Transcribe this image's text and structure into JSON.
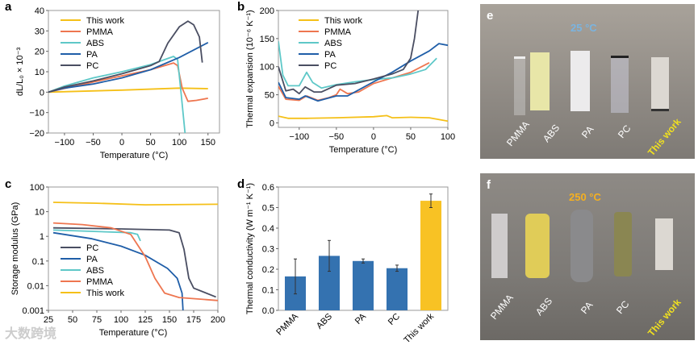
{
  "colors": {
    "this_work": "#f5c018",
    "PMMA": "#ee7650",
    "ABS": "#5ec8c8",
    "PA": "#1f5ea8",
    "PC": "#4a4e62",
    "bar_blue": "#3472b0",
    "bar_yellow": "#f8c224"
  },
  "chart_data": [
    {
      "panel": "a",
      "type": "line",
      "xlabel": "Temperature (°C)",
      "ylabel": "dL/L₀ × 10⁻³",
      "xlim": [
        -128,
        170
      ],
      "ylim": [
        -20,
        40
      ],
      "xticks": [
        -100,
        -50,
        0,
        50,
        100,
        150
      ],
      "yticks": [
        -20,
        -10,
        0,
        10,
        20,
        30,
        40
      ],
      "legend": "top-left",
      "series": [
        {
          "name": "This work",
          "key": "this_work",
          "points": [
            [
              -128,
              0
            ],
            [
              0,
              1
            ],
            [
              100,
              2
            ],
            [
              150,
              1.7
            ]
          ]
        },
        {
          "name": "PMMA",
          "key": "PMMA",
          "points": [
            [
              -128,
              0
            ],
            [
              -50,
              5
            ],
            [
              0,
              8
            ],
            [
              50,
              11
            ],
            [
              90,
              14.3
            ],
            [
              97,
              13
            ],
            [
              105,
              2
            ],
            [
              115,
              -4.5
            ],
            [
              130,
              -4
            ],
            [
              150,
              -3
            ]
          ]
        },
        {
          "name": "ABS",
          "key": "ABS",
          "points": [
            [
              -128,
              0
            ],
            [
              -100,
              3
            ],
            [
              -50,
              7
            ],
            [
              0,
              10
            ],
            [
              50,
              13.5
            ],
            [
              90,
              17.5
            ],
            [
              97,
              16
            ],
            [
              103,
              0
            ],
            [
              110,
              -20
            ]
          ]
        },
        {
          "name": "PA",
          "key": "PA",
          "points": [
            [
              -128,
              0
            ],
            [
              -100,
              2
            ],
            [
              -50,
              4
            ],
            [
              0,
              7
            ],
            [
              50,
              11
            ],
            [
              100,
              17
            ],
            [
              150,
              24.3
            ]
          ]
        },
        {
          "name": "PC",
          "key": "PC",
          "points": [
            [
              -128,
              0
            ],
            [
              -100,
              2.5
            ],
            [
              -50,
              5.5
            ],
            [
              0,
              9
            ],
            [
              50,
              13
            ],
            [
              65,
              15
            ],
            [
              80,
              24
            ],
            [
              100,
              32
            ],
            [
              115,
              34.8
            ],
            [
              125,
              33
            ],
            [
              135,
              27
            ],
            [
              140,
              14.5
            ]
          ]
        }
      ]
    },
    {
      "panel": "b",
      "type": "line",
      "xlabel": "Temperature (°C)",
      "ylabel": "Thermal expansion (10⁻⁶ K⁻¹)",
      "xlim": [
        -128,
        100
      ],
      "ylim": [
        -8,
        200
      ],
      "xticks": [
        -100,
        -50,
        0,
        50,
        100
      ],
      "yticks": [
        0,
        50,
        100,
        150,
        200
      ],
      "legend": "top-left",
      "series": [
        {
          "name": "This work",
          "key": "this_work",
          "points": [
            [
              -128,
              12
            ],
            [
              -115,
              8
            ],
            [
              -90,
              8
            ],
            [
              -50,
              9
            ],
            [
              0,
              11
            ],
            [
              18,
              13
            ],
            [
              25,
              9
            ],
            [
              50,
              10
            ],
            [
              75,
              9
            ],
            [
              100,
              3
            ]
          ]
        },
        {
          "name": "PMMA",
          "key": "PMMA",
          "points": [
            [
              -128,
              65
            ],
            [
              -118,
              42
            ],
            [
              -100,
              40
            ],
            [
              -90,
              48
            ],
            [
              -75,
              40
            ],
            [
              -60,
              45
            ],
            [
              -50,
              50
            ],
            [
              -45,
              60
            ],
            [
              -35,
              52
            ],
            [
              -20,
              55
            ],
            [
              0,
              70
            ],
            [
              25,
              80
            ],
            [
              50,
              90
            ],
            [
              75,
              107
            ]
          ]
        },
        {
          "name": "ABS",
          "key": "ABS",
          "points": [
            [
              -128,
              145
            ],
            [
              -122,
              85
            ],
            [
              -115,
              66
            ],
            [
              -100,
              66
            ],
            [
              -90,
              90
            ],
            [
              -82,
              72
            ],
            [
              -70,
              62
            ],
            [
              -50,
              68
            ],
            [
              -25,
              73
            ],
            [
              0,
              77
            ],
            [
              25,
              80
            ],
            [
              50,
              87
            ],
            [
              70,
              95
            ],
            [
              85,
              115
            ]
          ]
        },
        {
          "name": "PA",
          "key": "PA",
          "points": [
            [
              -128,
              72
            ],
            [
              -118,
              45
            ],
            [
              -100,
              42
            ],
            [
              -92,
              48
            ],
            [
              -75,
              39
            ],
            [
              -50,
              48
            ],
            [
              -35,
              48
            ],
            [
              -25,
              55
            ],
            [
              0,
              73
            ],
            [
              25,
              90
            ],
            [
              50,
              110
            ],
            [
              75,
              128
            ],
            [
              88,
              141
            ],
            [
              100,
              138
            ]
          ]
        },
        {
          "name": "PC",
          "key": "PC",
          "points": [
            [
              -128,
              100
            ],
            [
              -118,
              57
            ],
            [
              -108,
              60
            ],
            [
              -100,
              52
            ],
            [
              -92,
              64
            ],
            [
              -80,
              55
            ],
            [
              -70,
              55
            ],
            [
              -50,
              67
            ],
            [
              -25,
              70
            ],
            [
              0,
              78
            ],
            [
              25,
              87
            ],
            [
              40,
              95
            ],
            [
              50,
              115
            ],
            [
              55,
              150
            ],
            [
              60,
              200
            ]
          ]
        }
      ]
    },
    {
      "panel": "c",
      "type": "line",
      "yscale": "log",
      "xlabel": "Temperature (°C)",
      "ylabel": "Storage modulus (GPa)",
      "xlim": [
        25,
        200
      ],
      "ylim": [
        0.001,
        100
      ],
      "xticks": [
        25,
        50,
        75,
        100,
        125,
        150,
        175,
        200
      ],
      "yticks": [
        0.001,
        0.01,
        0.1,
        1,
        10,
        100
      ],
      "yticklabels": [
        "0.001",
        "0.01",
        "0.1",
        "1",
        "10",
        "100"
      ],
      "legend": "bottom-left",
      "series": [
        {
          "name": "PC",
          "key": "PC",
          "points": [
            [
              30,
              2.2
            ],
            [
              100,
              2.0
            ],
            [
              150,
              1.8
            ],
            [
              160,
              1.4
            ],
            [
              165,
              0.3
            ],
            [
              170,
              0.02
            ],
            [
              175,
              0.008
            ],
            [
              198,
              0.0035
            ]
          ]
        },
        {
          "name": "PA",
          "key": "PA",
          "points": [
            [
              30,
              1.4
            ],
            [
              70,
              0.8
            ],
            [
              100,
              0.4
            ],
            [
              125,
              0.17
            ],
            [
              148,
              0.05
            ],
            [
              158,
              0.02
            ],
            [
              163,
              0.005
            ],
            [
              164,
              0.001
            ]
          ]
        },
        {
          "name": "ABS",
          "key": "ABS",
          "points": [
            [
              30,
              1.8
            ],
            [
              110,
              1.4
            ],
            [
              117,
              1.2
            ],
            [
              120,
              0.65
            ]
          ]
        },
        {
          "name": "PMMA",
          "key": "PMMA",
          "points": [
            [
              30,
              3.5
            ],
            [
              60,
              3.0
            ],
            [
              90,
              2.2
            ],
            [
              110,
              1.2
            ],
            [
              125,
              0.15
            ],
            [
              135,
              0.02
            ],
            [
              145,
              0.005
            ],
            [
              160,
              0.0033
            ],
            [
              200,
              0.0025
            ]
          ]
        },
        {
          "name": "This work",
          "key": "this_work",
          "points": [
            [
              30,
              24
            ],
            [
              75,
              22
            ],
            [
              125,
              19
            ],
            [
              200,
              20
            ]
          ]
        }
      ]
    },
    {
      "panel": "d",
      "type": "bar",
      "xlabel": "",
      "ylabel": "Thermal conductivity (W m⁻¹ K⁻¹)",
      "ylim": [
        0,
        0.6
      ],
      "yticks": [
        0,
        0.1,
        0.2,
        0.3,
        0.4,
        0.5,
        0.6
      ],
      "yticklabels": [
        "0.0",
        "0.1",
        "0.2",
        "0.3",
        "0.4",
        "0.5",
        "0.6"
      ],
      "categories": [
        "PMMA",
        "ABS",
        "PA",
        "PC",
        "This work"
      ],
      "values": [
        0.165,
        0.265,
        0.24,
        0.205,
        0.533
      ],
      "errors": [
        0.085,
        0.075,
        0.01,
        0.015,
        0.033
      ]
    }
  ],
  "photos": [
    {
      "panel": "e",
      "temperature": "25 °C",
      "temp_color": "#7ab4e0",
      "samples": [
        "PMMA",
        "ABS",
        "PA",
        "PC",
        "This work"
      ]
    },
    {
      "panel": "f",
      "temperature": "250 °C",
      "temp_color": "#f5b020",
      "samples": [
        "PMMA",
        "ABS",
        "PA",
        "PC",
        "This work"
      ]
    }
  ],
  "watermark": "大数跨境"
}
